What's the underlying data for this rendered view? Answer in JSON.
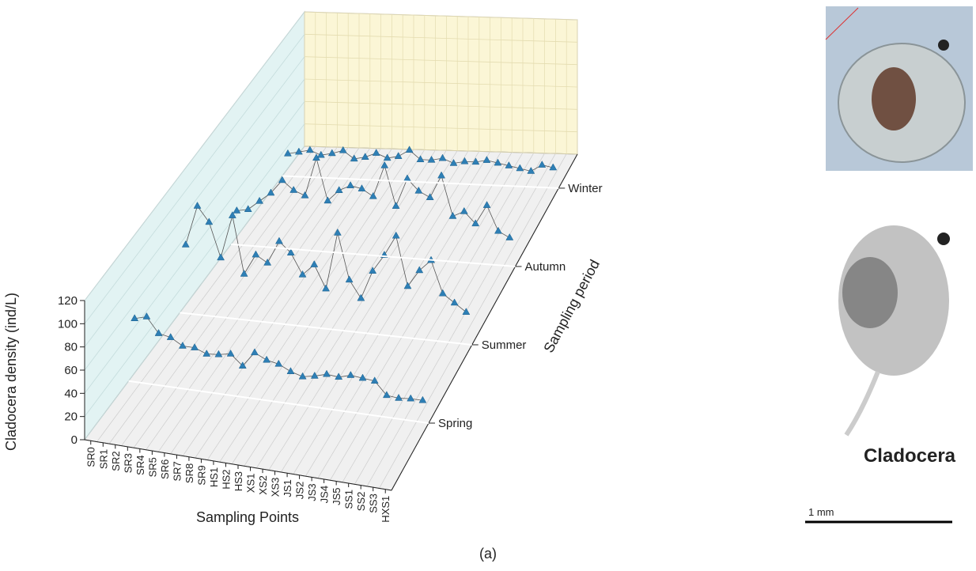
{
  "chart_data": {
    "type": "line3d",
    "y_label": "Cladocera density (ind/L)",
    "x_label": "Sampling Points",
    "z_label": "Sampling period",
    "categories": [
      "SR0",
      "SR1",
      "SR2",
      "SR3",
      "SR4",
      "SR5",
      "SR6",
      "SR7",
      "SR8",
      "SR9",
      "HS1",
      "HS2",
      "HS3",
      "XS1",
      "XS2",
      "XS3",
      "JS1",
      "JS2",
      "JS3",
      "JS4",
      "JS5",
      "SS1",
      "SS2",
      "SS3",
      "HXS1"
    ],
    "series": [
      {
        "name": "Spring",
        "color": "#2e7fb5",
        "values": [
          55,
          58,
          45,
          43,
          37,
          37,
          33,
          34,
          36,
          27,
          40,
          35,
          33,
          28,
          25,
          27,
          30,
          29,
          32,
          31,
          30,
          19,
          18,
          19,
          19
        ]
      },
      {
        "name": "Summer",
        "color": "#2e7fb5",
        "values": [
          60,
          95,
          82,
          52,
          90,
          40,
          58,
          52,
          72,
          63,
          45,
          55,
          35,
          85,
          45,
          30,
          55,
          70,
          88,
          45,
          60,
          70,
          42,
          35,
          28
        ]
      },
      {
        "name": "Autumn",
        "color": "#2e7fb5",
        "values": [
          30,
          32,
          40,
          48,
          60,
          52,
          48,
          82,
          45,
          55,
          60,
          58,
          52,
          80,
          45,
          70,
          60,
          55,
          75,
          40,
          45,
          35,
          52,
          30,
          25
        ]
      },
      {
        "name": "Winter",
        "color": "#2e7fb5",
        "values": [
          20,
          22,
          24,
          20,
          22,
          25,
          18,
          20,
          24,
          20,
          22,
          28,
          20,
          20,
          22,
          18,
          20,
          20,
          22,
          20,
          18,
          16,
          14,
          20,
          18
        ]
      }
    ],
    "ylim": [
      0,
      120
    ],
    "yticks": [
      0,
      20,
      40,
      60,
      80,
      100,
      120
    ],
    "grid": true
  },
  "figure": {
    "organism": "Cladocera",
    "scale": "1 mm",
    "panel": "(a)"
  }
}
